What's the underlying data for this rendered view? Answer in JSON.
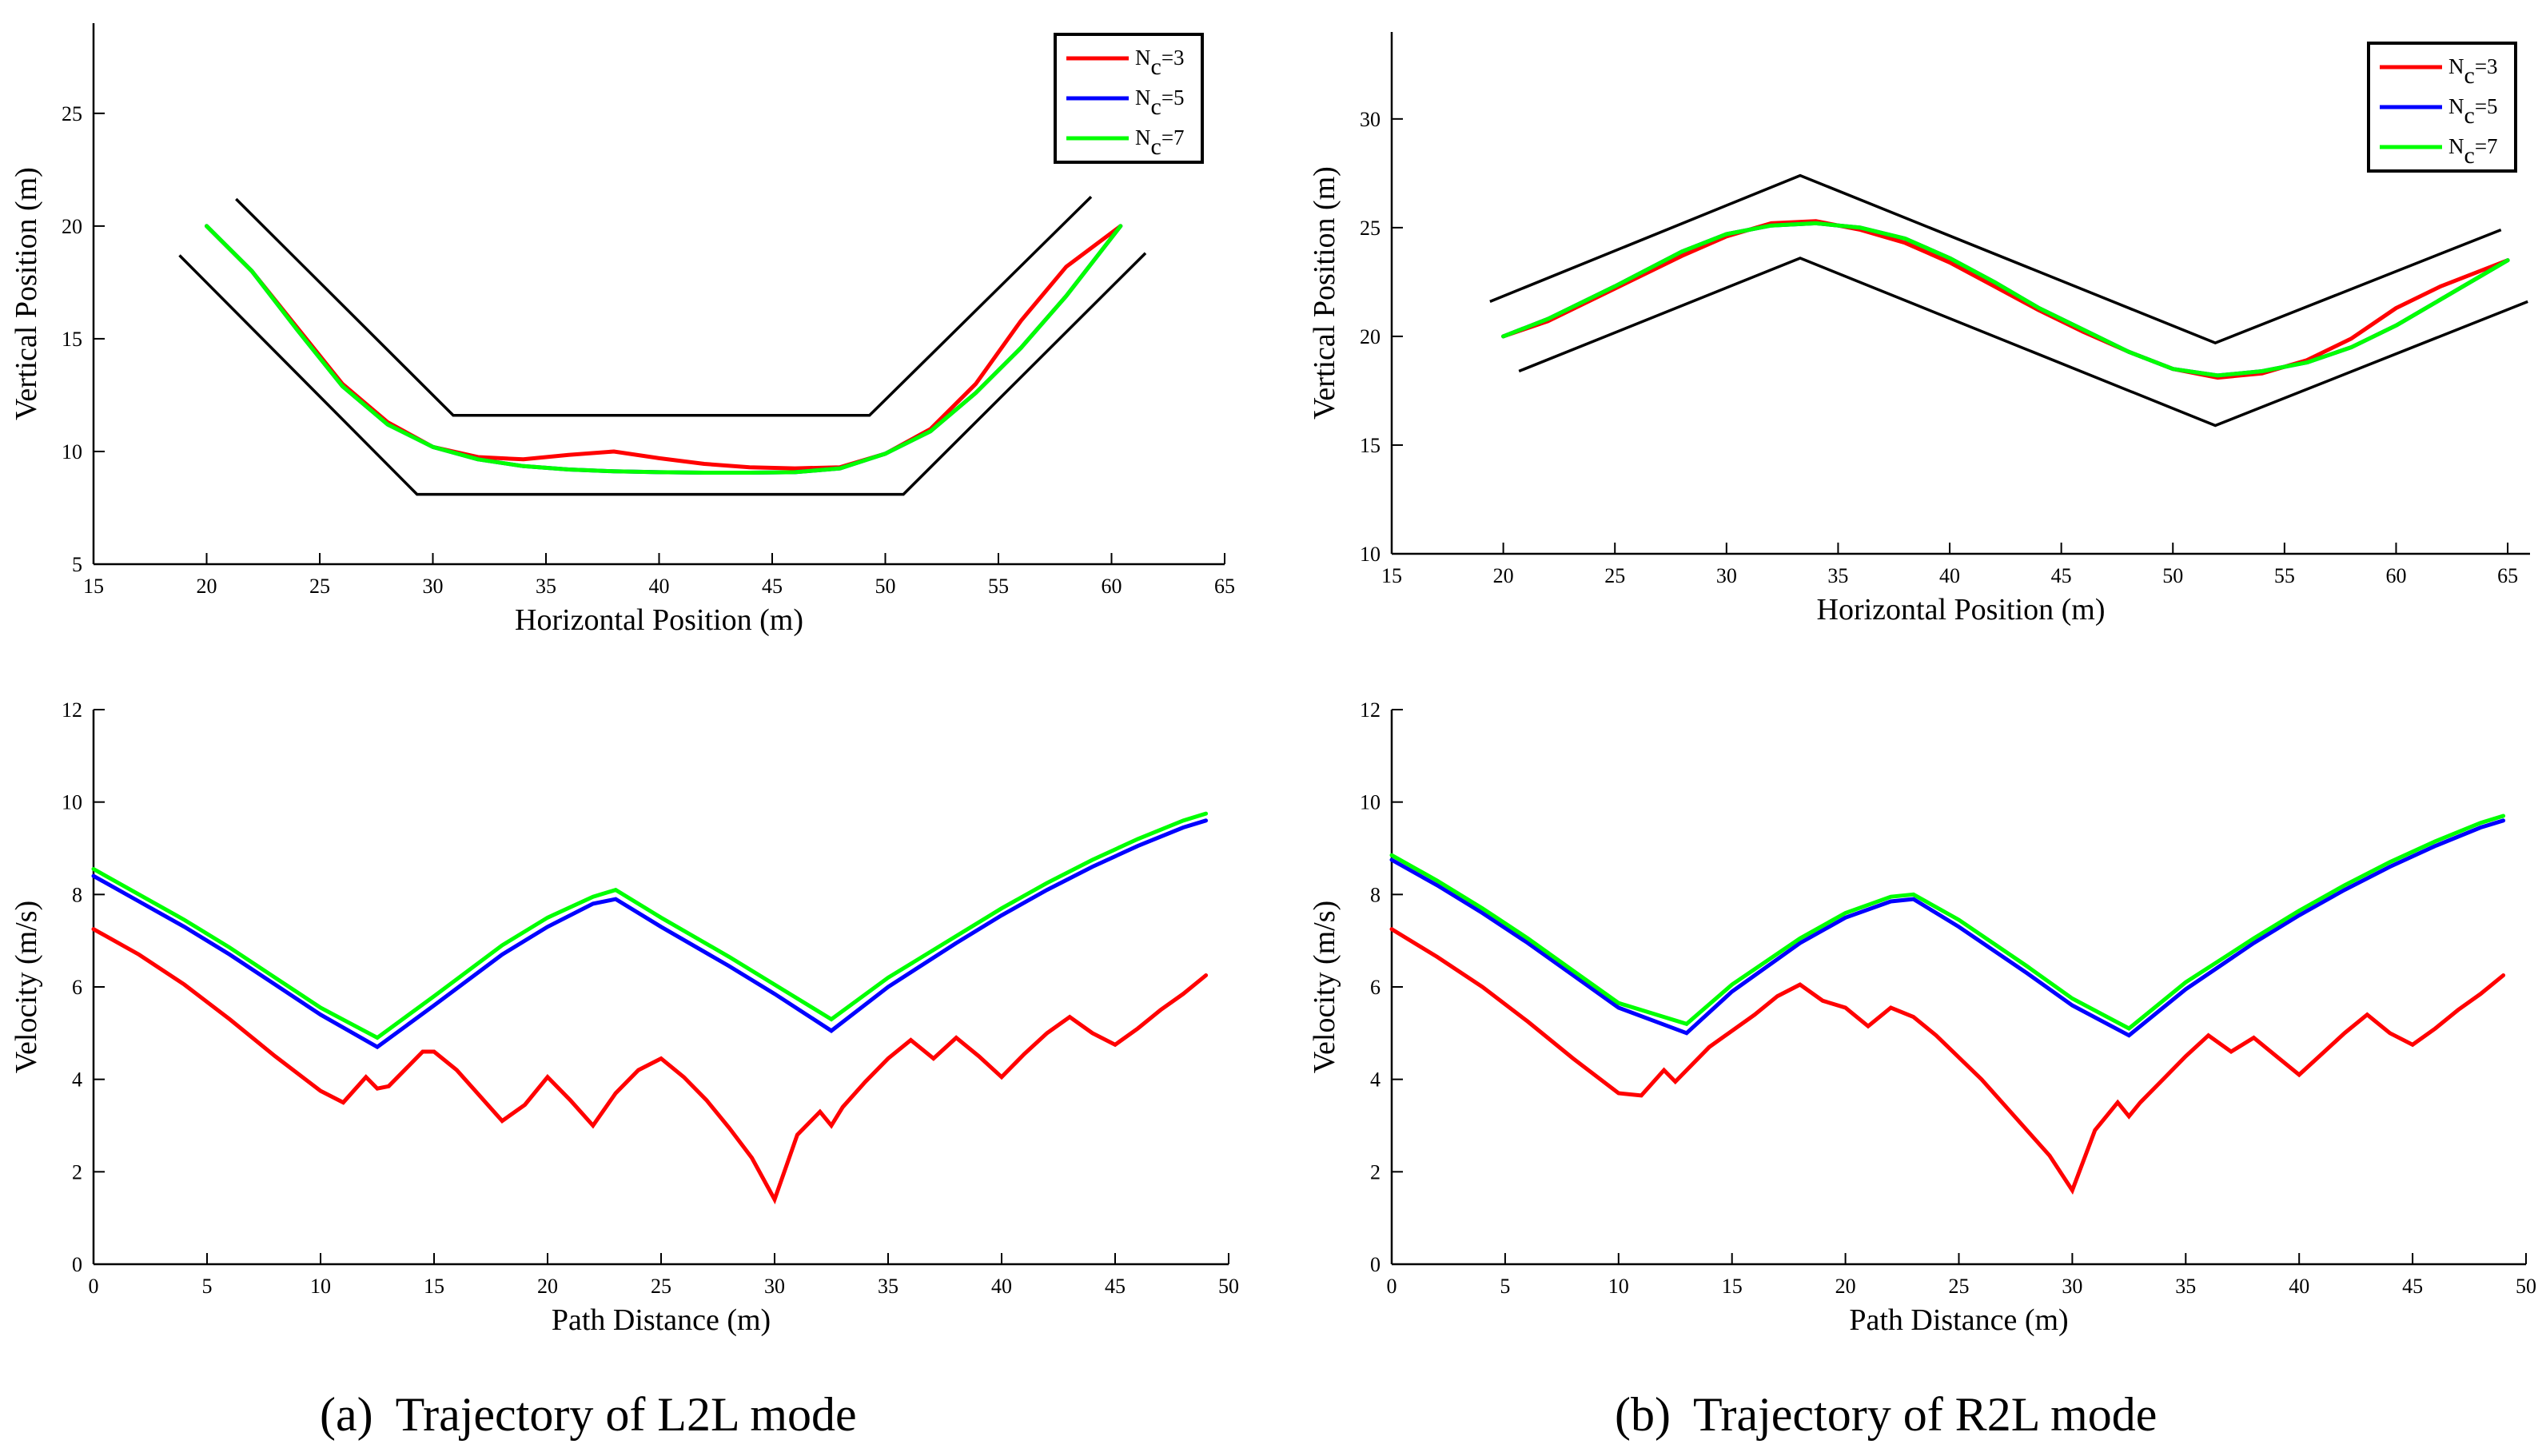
{
  "figure": {
    "captions": [
      {
        "label": "(a)",
        "text": "Trajectory of L2L mode"
      },
      {
        "label": "(b)",
        "text": "Trajectory of R2L mode"
      }
    ]
  },
  "colors": {
    "Nc=3": "#ff0000",
    "Nc=5": "#0000ff",
    "Nc=7": "#00ff00",
    "boundary": "#000000"
  },
  "chart_data": [
    {
      "id": "a-top",
      "type": "line",
      "xlabel": "Horizontal Position (m)",
      "ylabel": "Vertical Position (m)",
      "xlim": [
        15,
        65
      ],
      "ylim": [
        5,
        29
      ],
      "xticks": [
        15,
        20,
        25,
        30,
        35,
        40,
        45,
        50,
        55,
        60,
        65
      ],
      "yticks": [
        5,
        10,
        15,
        20,
        25
      ],
      "legend": {
        "position": "top-right",
        "entries": [
          {
            "base": "N",
            "sub": "c",
            "suffix": "=3",
            "color": "#ff0000"
          },
          {
            "base": "N",
            "sub": "c",
            "suffix": "=5",
            "color": "#0000ff"
          },
          {
            "base": "N",
            "sub": "c",
            "suffix": "=7",
            "color": "#00ff00"
          }
        ]
      },
      "boundaries": [
        {
          "x": [
            21.3,
            30.9,
            49.3,
            59.1
          ],
          "y": [
            21.2,
            11.6,
            11.6,
            21.3
          ]
        },
        {
          "x": [
            18.8,
            29.3,
            50.8,
            61.5
          ],
          "y": [
            18.7,
            8.1,
            8.1,
            18.8
          ]
        }
      ],
      "series": [
        {
          "name": "Nc=3",
          "color": "#ff0000",
          "x": [
            20,
            22,
            24,
            26,
            28,
            30,
            32,
            34,
            36,
            38,
            40,
            42,
            44,
            46,
            48,
            50,
            52,
            54,
            56,
            58,
            60.4
          ],
          "y": [
            20,
            18,
            15.5,
            13,
            11.3,
            10.2,
            9.75,
            9.65,
            9.85,
            10.0,
            9.7,
            9.45,
            9.3,
            9.25,
            9.3,
            9.9,
            11.0,
            13.0,
            15.8,
            18.2,
            20
          ]
        },
        {
          "name": "Nc=5",
          "color": "#0000ff",
          "x": [
            20,
            22,
            24,
            26,
            28,
            30,
            32,
            34,
            36,
            38,
            40,
            42,
            44,
            46,
            48,
            50,
            52,
            54,
            56,
            58,
            60.4
          ],
          "y": [
            20,
            18,
            15.4,
            12.9,
            11.2,
            10.2,
            9.65,
            9.35,
            9.2,
            9.12,
            9.08,
            9.06,
            9.06,
            9.08,
            9.25,
            9.9,
            10.9,
            12.6,
            14.6,
            16.9,
            20
          ]
        },
        {
          "name": "Nc=7",
          "color": "#00ff00",
          "x": [
            20,
            22,
            24,
            26,
            28,
            30,
            32,
            34,
            36,
            38,
            40,
            42,
            44,
            46,
            48,
            50,
            52,
            54,
            56,
            58,
            60.4
          ],
          "y": [
            20,
            18,
            15.4,
            12.9,
            11.2,
            10.2,
            9.65,
            9.35,
            9.2,
            9.12,
            9.08,
            9.06,
            9.06,
            9.08,
            9.25,
            9.9,
            10.9,
            12.6,
            14.6,
            16.9,
            20
          ]
        }
      ]
    },
    {
      "id": "b-top",
      "type": "line",
      "xlabel": "Horizontal Position (m)",
      "ylabel": "Vertical Position (m)",
      "xlim": [
        15,
        66
      ],
      "ylim": [
        10,
        34
      ],
      "xticks": [
        15,
        20,
        25,
        30,
        35,
        40,
        45,
        50,
        55,
        60,
        65
      ],
      "yticks": [
        10,
        15,
        20,
        25,
        30
      ],
      "legend": {
        "position": "top-right",
        "entries": [
          {
            "base": "N",
            "sub": "c",
            "suffix": "=3",
            "color": "#ff0000"
          },
          {
            "base": "N",
            "sub": "c",
            "suffix": "=5",
            "color": "#0000ff"
          },
          {
            "base": "N",
            "sub": "c",
            "suffix": "=7",
            "color": "#00ff00"
          }
        ]
      },
      "boundaries": [
        {
          "x": [
            19.4,
            33.3,
            51.9,
            64.7
          ],
          "y": [
            21.6,
            27.4,
            19.7,
            24.9
          ]
        },
        {
          "x": [
            20.7,
            33.3,
            51.9,
            65.9
          ],
          "y": [
            18.4,
            23.6,
            15.9,
            21.6
          ]
        }
      ],
      "series": [
        {
          "name": "Nc=3",
          "color": "#ff0000",
          "x": [
            20,
            22,
            25,
            28,
            30,
            32,
            34,
            36,
            38,
            40,
            42,
            44,
            46,
            48,
            50,
            52,
            54,
            56,
            58,
            60,
            62,
            65
          ],
          "y": [
            20.0,
            20.7,
            22.2,
            23.7,
            24.6,
            25.2,
            25.3,
            24.9,
            24.3,
            23.4,
            22.3,
            21.2,
            20.2,
            19.3,
            18.5,
            18.1,
            18.3,
            18.9,
            19.9,
            21.3,
            22.3,
            23.5
          ]
        },
        {
          "name": "Nc=5",
          "color": "#0000ff",
          "x": [
            20,
            22,
            25,
            28,
            30,
            32,
            34,
            36,
            38,
            40,
            42,
            44,
            46,
            48,
            50,
            52,
            54,
            56,
            58,
            60,
            62,
            65
          ],
          "y": [
            20.0,
            20.8,
            22.3,
            23.9,
            24.7,
            25.1,
            25.2,
            25.0,
            24.5,
            23.6,
            22.5,
            21.3,
            20.3,
            19.3,
            18.5,
            18.2,
            18.4,
            18.8,
            19.5,
            20.5,
            21.7,
            23.5
          ]
        },
        {
          "name": "Nc=7",
          "color": "#00ff00",
          "x": [
            20,
            22,
            25,
            28,
            30,
            32,
            34,
            36,
            38,
            40,
            42,
            44,
            46,
            48,
            50,
            52,
            54,
            56,
            58,
            60,
            62,
            65
          ],
          "y": [
            20.0,
            20.8,
            22.3,
            23.9,
            24.7,
            25.1,
            25.2,
            25.0,
            24.5,
            23.6,
            22.5,
            21.3,
            20.3,
            19.3,
            18.5,
            18.2,
            18.4,
            18.8,
            19.5,
            20.5,
            21.7,
            23.5
          ]
        }
      ]
    },
    {
      "id": "a-bottom",
      "type": "line",
      "xlabel": "Path Distance (m)",
      "ylabel": "Velocity (m/s)",
      "xlim": [
        0,
        50
      ],
      "ylim": [
        0,
        12
      ],
      "xticks": [
        0,
        5,
        10,
        15,
        20,
        25,
        30,
        35,
        40,
        45,
        50
      ],
      "yticks": [
        0,
        2,
        4,
        6,
        8,
        10,
        12
      ],
      "series": [
        {
          "name": "Nc=3",
          "color": "#ff0000",
          "x": [
            0,
            2,
            4,
            6,
            8,
            10,
            11,
            12,
            12.5,
            13,
            14.5,
            15,
            16,
            18,
            19,
            20,
            21,
            22,
            23,
            24,
            25,
            26,
            27,
            28,
            29,
            30,
            31,
            32,
            32.5,
            33,
            34,
            35,
            36,
            37,
            38,
            39,
            40,
            41,
            42,
            43,
            44,
            45,
            46,
            47,
            48,
            49
          ],
          "y": [
            7.25,
            6.7,
            6.05,
            5.3,
            4.5,
            3.75,
            3.5,
            4.05,
            3.8,
            3.85,
            4.6,
            4.6,
            4.2,
            3.1,
            3.45,
            4.05,
            3.55,
            3.0,
            3.7,
            4.2,
            4.45,
            4.05,
            3.55,
            2.95,
            2.3,
            1.4,
            2.8,
            3.3,
            3.0,
            3.4,
            3.95,
            4.45,
            4.85,
            4.45,
            4.9,
            4.5,
            4.05,
            4.55,
            5.0,
            5.35,
            5.0,
            4.75,
            5.1,
            5.5,
            5.85,
            6.25
          ]
        },
        {
          "name": "Nc=5",
          "color": "#0000ff",
          "x": [
            0,
            2,
            4,
            6,
            8,
            10,
            12.5,
            15,
            18,
            20,
            22,
            23,
            25,
            28,
            30,
            32.5,
            35,
            38,
            40,
            42,
            44,
            46,
            48,
            49
          ],
          "y": [
            8.4,
            7.85,
            7.3,
            6.7,
            6.05,
            5.4,
            4.7,
            5.6,
            6.7,
            7.3,
            7.8,
            7.9,
            7.3,
            6.45,
            5.85,
            5.05,
            6.0,
            6.95,
            7.55,
            8.1,
            8.6,
            9.05,
            9.45,
            9.6
          ]
        },
        {
          "name": "Nc=7",
          "color": "#00ff00",
          "x": [
            0,
            2,
            4,
            6,
            8,
            10,
            12.5,
            15,
            18,
            20,
            22,
            23,
            25,
            28,
            30,
            32.5,
            35,
            38,
            40,
            42,
            44,
            46,
            48,
            49
          ],
          "y": [
            8.55,
            8.0,
            7.45,
            6.85,
            6.2,
            5.55,
            4.9,
            5.8,
            6.9,
            7.5,
            7.95,
            8.1,
            7.5,
            6.65,
            6.05,
            5.3,
            6.2,
            7.1,
            7.7,
            8.25,
            8.75,
            9.2,
            9.6,
            9.75
          ]
        }
      ]
    },
    {
      "id": "b-bottom",
      "type": "line",
      "xlabel": "Path Distance (m)",
      "ylabel": "Velocity (m/s)",
      "xlim": [
        0,
        50
      ],
      "ylim": [
        0,
        12
      ],
      "xticks": [
        0,
        5,
        10,
        15,
        20,
        25,
        30,
        35,
        40,
        45,
        50
      ],
      "yticks": [
        0,
        2,
        4,
        6,
        8,
        10,
        12
      ],
      "series": [
        {
          "name": "Nc=3",
          "color": "#ff0000",
          "x": [
            0,
            2,
            4,
            6,
            8,
            10,
            11,
            12,
            12.5,
            14,
            16,
            17,
            18,
            19,
            20,
            21,
            22,
            23,
            24,
            26,
            28,
            29,
            30,
            31,
            32,
            32.5,
            33,
            34,
            35,
            36,
            37,
            38,
            39,
            40,
            41,
            42,
            43,
            44,
            45,
            46,
            47,
            48,
            49
          ],
          "y": [
            7.25,
            6.65,
            6.0,
            5.25,
            4.45,
            3.7,
            3.65,
            4.2,
            3.95,
            4.7,
            5.4,
            5.8,
            6.05,
            5.7,
            5.55,
            5.15,
            5.55,
            5.35,
            4.95,
            4.0,
            2.9,
            2.35,
            1.6,
            2.9,
            3.5,
            3.2,
            3.5,
            4.0,
            4.5,
            4.95,
            4.6,
            4.9,
            4.5,
            4.1,
            4.55,
            5.0,
            5.4,
            5.0,
            4.75,
            5.1,
            5.5,
            5.85,
            6.25
          ]
        },
        {
          "name": "Nc=5",
          "color": "#0000ff",
          "x": [
            0,
            2,
            4,
            6,
            8,
            10,
            13,
            15,
            18,
            20,
            22,
            23,
            25,
            28,
            30,
            32.5,
            35,
            38,
            40,
            42,
            44,
            46,
            48,
            49
          ],
          "y": [
            8.75,
            8.2,
            7.6,
            6.95,
            6.25,
            5.55,
            5.0,
            5.9,
            6.95,
            7.5,
            7.85,
            7.9,
            7.3,
            6.3,
            5.6,
            4.95,
            5.95,
            6.95,
            7.55,
            8.1,
            8.6,
            9.05,
            9.45,
            9.6
          ]
        },
        {
          "name": "Nc=7",
          "color": "#00ff00",
          "x": [
            0,
            2,
            4,
            6,
            8,
            10,
            13,
            15,
            18,
            20,
            22,
            23,
            25,
            28,
            30,
            32.5,
            35,
            38,
            40,
            42,
            44,
            46,
            48,
            49
          ],
          "y": [
            8.85,
            8.3,
            7.7,
            7.05,
            6.35,
            5.65,
            5.2,
            6.05,
            7.05,
            7.6,
            7.95,
            8.0,
            7.45,
            6.45,
            5.75,
            5.1,
            6.1,
            7.05,
            7.65,
            8.2,
            8.7,
            9.15,
            9.55,
            9.7
          ]
        }
      ]
    }
  ]
}
